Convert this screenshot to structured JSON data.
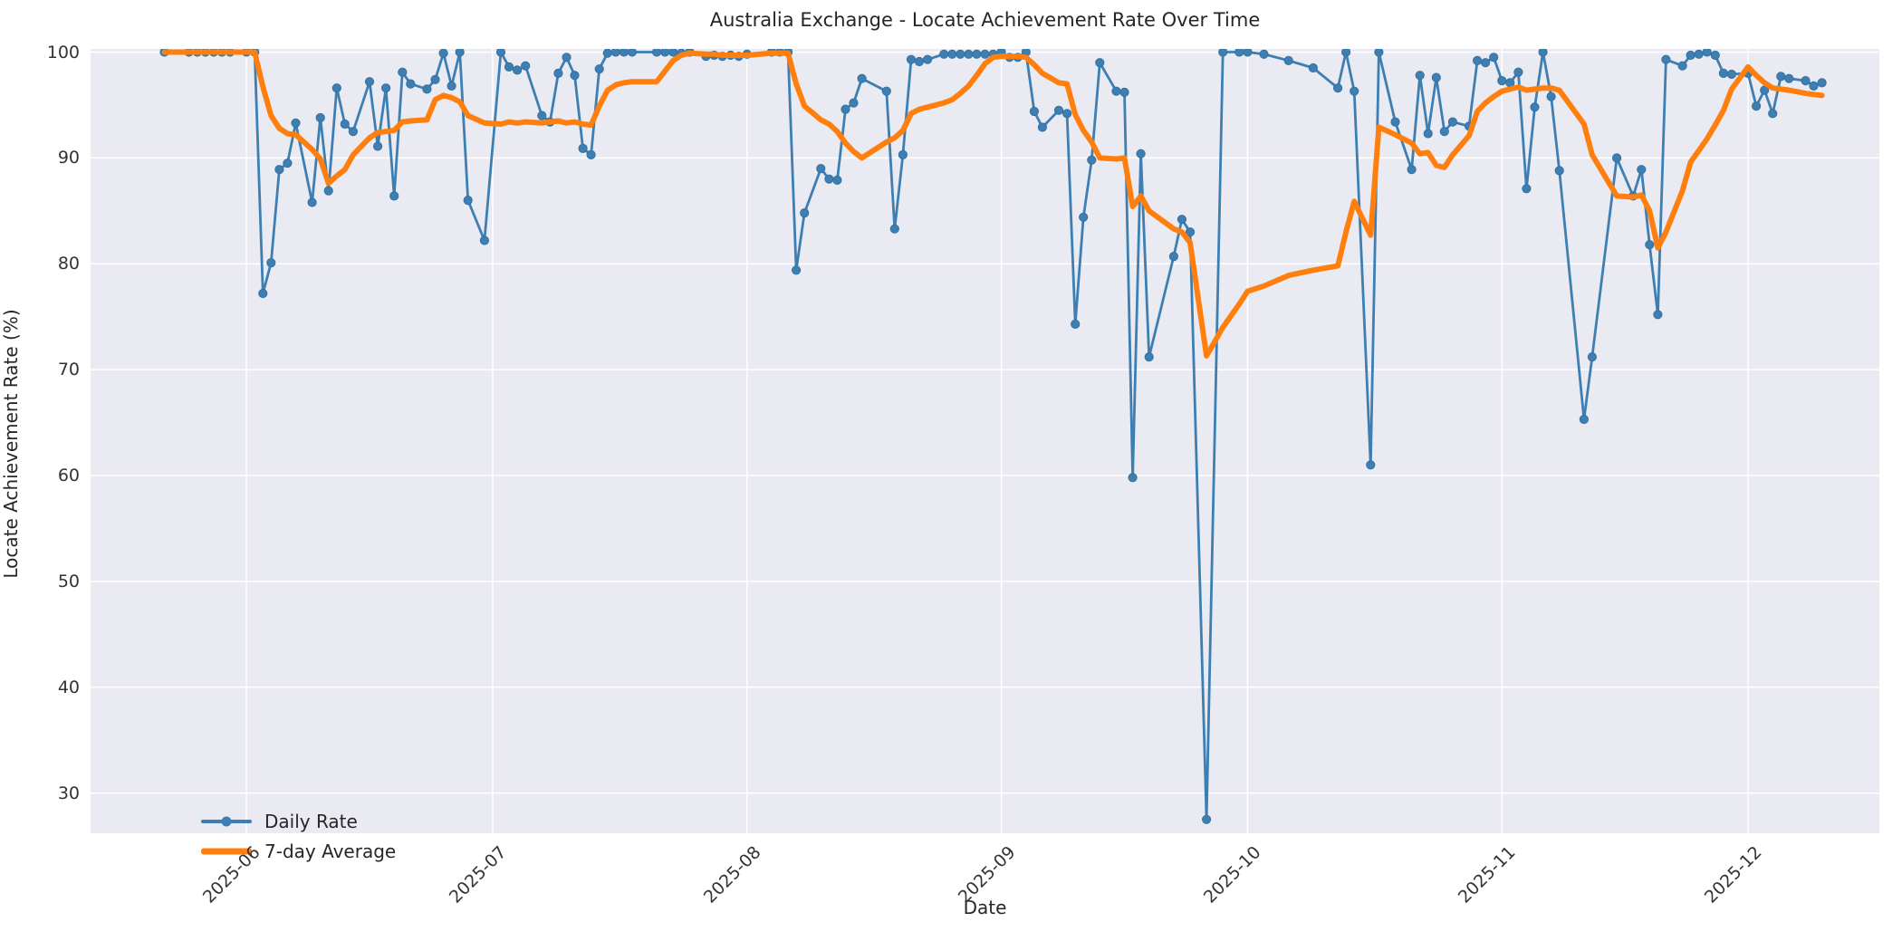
{
  "title": "Australia Exchange - Locate Achievement Rate Over Time",
  "axes": {
    "x_label": "Date",
    "y_label": "Locate Achievement Rate (%)",
    "y_ticks": [
      30,
      40,
      50,
      60,
      70,
      80,
      90,
      100
    ],
    "x_ticks": [
      {
        "label": "2025-06",
        "date": "2025-06-01"
      },
      {
        "label": "2025-07",
        "date": "2025-07-01"
      },
      {
        "label": "2025-08",
        "date": "2025-08-01"
      },
      {
        "label": "2025-09",
        "date": "2025-09-01"
      },
      {
        "label": "2025-10",
        "date": "2025-10-01"
      },
      {
        "label": "2025-11",
        "date": "2025-11-01"
      },
      {
        "label": "2025-12",
        "date": "2025-12-01"
      }
    ]
  },
  "legend": [
    {
      "label": "Daily Rate",
      "color": "#3d7fb2",
      "type": "line-marker"
    },
    {
      "label": "7-day Average",
      "color": "#ff7f0e",
      "type": "line"
    }
  ],
  "colors": {
    "plot_background": "#eaeaf2",
    "grid": "#ffffff",
    "daily_line": "#3d7fb2",
    "avg_line": "#ff7f0e",
    "text": "#262626"
  },
  "chart_data": {
    "type": "line",
    "title": "Australia Exchange - Locate Achievement Rate Over Time",
    "xlabel": "Date",
    "ylabel": "Locate Achievement Rate (%)",
    "ylim": [
      26.2,
      100.3
    ],
    "x_range": [
      "2025-05-13",
      "2025-12-17"
    ],
    "grid": true,
    "legend_position": "lower-left",
    "series": [
      {
        "name": "Daily Rate",
        "color": "#3d7fb2",
        "width": 2.8,
        "markers": true,
        "marker_radius": 4.6
      },
      {
        "name": "7-day Average",
        "color": "#ff7f0e",
        "width": 6,
        "markers": false
      }
    ],
    "points": [
      [
        "2025-05-22",
        100,
        100
      ],
      [
        "2025-05-25",
        100,
        100
      ],
      [
        "2025-05-26",
        100,
        100
      ],
      [
        "2025-05-27",
        100,
        100
      ],
      [
        "2025-05-28",
        100,
        100
      ],
      [
        "2025-05-29",
        100,
        100
      ],
      [
        "2025-05-30",
        100,
        100
      ],
      [
        "2025-06-01",
        100,
        100
      ],
      [
        "2025-06-02",
        100,
        100
      ],
      [
        "2025-06-03",
        77.2,
        96.7
      ],
      [
        "2025-06-04",
        80.1,
        94.0
      ],
      [
        "2025-06-05",
        88.9,
        92.8
      ],
      [
        "2025-06-06",
        89.5,
        92.3
      ],
      [
        "2025-06-07",
        93.3,
        92.2
      ],
      [
        "2025-06-09",
        85.8,
        90.8
      ],
      [
        "2025-06-10",
        93.8,
        89.9
      ],
      [
        "2025-06-11",
        86.9,
        87.6
      ],
      [
        "2025-06-12",
        96.6,
        88.3
      ],
      [
        "2025-06-13",
        93.2,
        88.9
      ],
      [
        "2025-06-14",
        92.5,
        90.3
      ],
      [
        "2025-06-16",
        97.2,
        91.9
      ],
      [
        "2025-06-17",
        91.1,
        92.4
      ],
      [
        "2025-06-18",
        96.6,
        92.5
      ],
      [
        "2025-06-19",
        86.4,
        92.6
      ],
      [
        "2025-06-20",
        98.1,
        93.4
      ],
      [
        "2025-06-21",
        97.0,
        93.5
      ],
      [
        "2025-06-23",
        96.5,
        93.6
      ],
      [
        "2025-06-24",
        97.4,
        95.5
      ],
      [
        "2025-06-25",
        99.9,
        95.9
      ],
      [
        "2025-06-26",
        96.8,
        95.7
      ],
      [
        "2025-06-27",
        100,
        95.3
      ],
      [
        "2025-06-28",
        86.0,
        94.0
      ],
      [
        "2025-06-30",
        82.2,
        93.3
      ],
      [
        "2025-07-02",
        100,
        93.2
      ],
      [
        "2025-07-03",
        98.6,
        93.4
      ],
      [
        "2025-07-04",
        98.3,
        93.3
      ],
      [
        "2025-07-05",
        98.7,
        93.4
      ],
      [
        "2025-07-07",
        94.0,
        93.3
      ],
      [
        "2025-07-08",
        93.4,
        93.4
      ],
      [
        "2025-07-09",
        98.0,
        93.5
      ],
      [
        "2025-07-10",
        99.5,
        93.3
      ],
      [
        "2025-07-11",
        97.8,
        93.4
      ],
      [
        "2025-07-12",
        90.9,
        93.2
      ],
      [
        "2025-07-13",
        90.3,
        93.1
      ],
      [
        "2025-07-14",
        98.4,
        94.9
      ],
      [
        "2025-07-15",
        99.9,
        96.4
      ],
      [
        "2025-07-16",
        100,
        96.9
      ],
      [
        "2025-07-17",
        100,
        97.1
      ],
      [
        "2025-07-18",
        100,
        97.2
      ],
      [
        "2025-07-21",
        100,
        97.2
      ],
      [
        "2025-07-22",
        100,
        98.2
      ],
      [
        "2025-07-23",
        100,
        99.2
      ],
      [
        "2025-07-24",
        99.9,
        99.7
      ],
      [
        "2025-07-25",
        100,
        99.9
      ],
      [
        "2025-07-27",
        99.6,
        99.8
      ],
      [
        "2025-07-28",
        99.7,
        99.8
      ],
      [
        "2025-07-29",
        99.6,
        99.7
      ],
      [
        "2025-07-30",
        99.7,
        99.7
      ],
      [
        "2025-07-31",
        99.6,
        99.7
      ],
      [
        "2025-08-01",
        99.8,
        99.7
      ],
      [
        "2025-08-04",
        100,
        99.9
      ],
      [
        "2025-08-05",
        100,
        99.9
      ],
      [
        "2025-08-06",
        100,
        99.9
      ],
      [
        "2025-08-07",
        79.4,
        97.0
      ],
      [
        "2025-08-08",
        84.8,
        94.9
      ],
      [
        "2025-08-10",
        89.0,
        93.6
      ],
      [
        "2025-08-11",
        88.0,
        93.2
      ],
      [
        "2025-08-12",
        87.9,
        92.5
      ],
      [
        "2025-08-13",
        94.6,
        91.4
      ],
      [
        "2025-08-14",
        95.2,
        90.6
      ],
      [
        "2025-08-15",
        97.5,
        90.0
      ],
      [
        "2025-08-18",
        96.3,
        91.5
      ],
      [
        "2025-08-19",
        83.3,
        91.9
      ],
      [
        "2025-08-20",
        90.3,
        92.6
      ],
      [
        "2025-08-21",
        99.3,
        94.2
      ],
      [
        "2025-08-22",
        99.1,
        94.6
      ],
      [
        "2025-08-23",
        99.3,
        94.8
      ],
      [
        "2025-08-25",
        99.8,
        95.2
      ],
      [
        "2025-08-26",
        99.8,
        95.5
      ],
      [
        "2025-08-27",
        99.8,
        96.1
      ],
      [
        "2025-08-28",
        99.8,
        96.8
      ],
      [
        "2025-08-29",
        99.8,
        97.8
      ],
      [
        "2025-08-30",
        99.8,
        98.9
      ],
      [
        "2025-08-31",
        99.8,
        99.5
      ],
      [
        "2025-09-01",
        100,
        99.6
      ],
      [
        "2025-09-02",
        99.5,
        99.6
      ],
      [
        "2025-09-03",
        99.5,
        99.6
      ],
      [
        "2025-09-04",
        100,
        99.5
      ],
      [
        "2025-09-05",
        94.4,
        98.8
      ],
      [
        "2025-09-06",
        92.9,
        98.0
      ],
      [
        "2025-09-08",
        94.5,
        97.1
      ],
      [
        "2025-09-09",
        94.2,
        97.0
      ],
      [
        "2025-09-10",
        74.3,
        94.1
      ],
      [
        "2025-09-11",
        84.4,
        92.6
      ],
      [
        "2025-09-12",
        89.8,
        91.5
      ],
      [
        "2025-09-13",
        99.0,
        90.0
      ],
      [
        "2025-09-15",
        96.3,
        89.9
      ],
      [
        "2025-09-16",
        96.2,
        90.0
      ],
      [
        "2025-09-17",
        59.8,
        85.4
      ],
      [
        "2025-09-18",
        90.4,
        86.4
      ],
      [
        "2025-09-19",
        71.2,
        85.0
      ],
      [
        "2025-09-22",
        80.7,
        83.3
      ],
      [
        "2025-09-23",
        84.2,
        83.0
      ],
      [
        "2025-09-24",
        83.0,
        82.0
      ],
      [
        "2025-09-26",
        27.5,
        71.3
      ],
      [
        "2025-09-28",
        100,
        74.0
      ],
      [
        "2025-09-30",
        100,
        76.2
      ],
      [
        "2025-10-01",
        100,
        77.4
      ],
      [
        "2025-10-03",
        99.8,
        77.9
      ],
      [
        "2025-10-06",
        99.2,
        78.9
      ],
      [
        "2025-10-09",
        98.5,
        79.4
      ],
      [
        "2025-10-12",
        96.6,
        79.8
      ],
      [
        "2025-10-13",
        100,
        83.0
      ],
      [
        "2025-10-14",
        96.3,
        85.9
      ],
      [
        "2025-10-16",
        61.0,
        82.7
      ],
      [
        "2025-10-17",
        100,
        92.9
      ],
      [
        "2025-10-19",
        93.4,
        92.2
      ],
      [
        "2025-10-21",
        88.9,
        91.4
      ],
      [
        "2025-10-22",
        97.8,
        90.4
      ],
      [
        "2025-10-23",
        92.3,
        90.5
      ],
      [
        "2025-10-24",
        97.6,
        89.3
      ],
      [
        "2025-10-25",
        92.5,
        89.1
      ],
      [
        "2025-10-26",
        93.4,
        90.3
      ],
      [
        "2025-10-28",
        93.0,
        92.1
      ],
      [
        "2025-10-29",
        99.2,
        94.4
      ],
      [
        "2025-10-30",
        99.0,
        95.2
      ],
      [
        "2025-10-31",
        99.5,
        95.8
      ],
      [
        "2025-11-01",
        97.3,
        96.3
      ],
      [
        "2025-11-02",
        97.1,
        96.5
      ],
      [
        "2025-11-03",
        98.1,
        96.7
      ],
      [
        "2025-11-04",
        87.1,
        96.4
      ],
      [
        "2025-11-05",
        94.8,
        96.5
      ],
      [
        "2025-11-06",
        100,
        96.6
      ],
      [
        "2025-11-07",
        95.8,
        96.6
      ],
      [
        "2025-11-08",
        88.8,
        96.4
      ],
      [
        "2025-11-11",
        65.3,
        93.2
      ],
      [
        "2025-11-12",
        71.2,
        90.3
      ],
      [
        "2025-11-15",
        90.0,
        86.4
      ],
      [
        "2025-11-17",
        86.4,
        86.3
      ],
      [
        "2025-11-18",
        88.9,
        86.5
      ],
      [
        "2025-11-19",
        81.8,
        85.0
      ],
      [
        "2025-11-20",
        75.2,
        81.5
      ],
      [
        "2025-11-21",
        99.3,
        83.0
      ],
      [
        "2025-11-23",
        98.7,
        86.9
      ],
      [
        "2025-11-24",
        99.7,
        89.6
      ],
      [
        "2025-11-25",
        99.8,
        90.7
      ],
      [
        "2025-11-26",
        100,
        91.8
      ],
      [
        "2025-11-27",
        99.7,
        93.1
      ],
      [
        "2025-11-28",
        98.0,
        94.5
      ],
      [
        "2025-11-29",
        97.9,
        96.5
      ],
      [
        "2025-12-01",
        98.0,
        98.6
      ],
      [
        "2025-12-02",
        94.9,
        97.8
      ],
      [
        "2025-12-03",
        96.4,
        97.1
      ],
      [
        "2025-12-04",
        94.2,
        96.6
      ],
      [
        "2025-12-05",
        97.7,
        96.5
      ],
      [
        "2025-12-06",
        97.5,
        96.4
      ],
      [
        "2025-12-08",
        97.3,
        96.1
      ],
      [
        "2025-12-09",
        96.8,
        96.0
      ],
      [
        "2025-12-10",
        97.1,
        95.9
      ]
    ]
  }
}
